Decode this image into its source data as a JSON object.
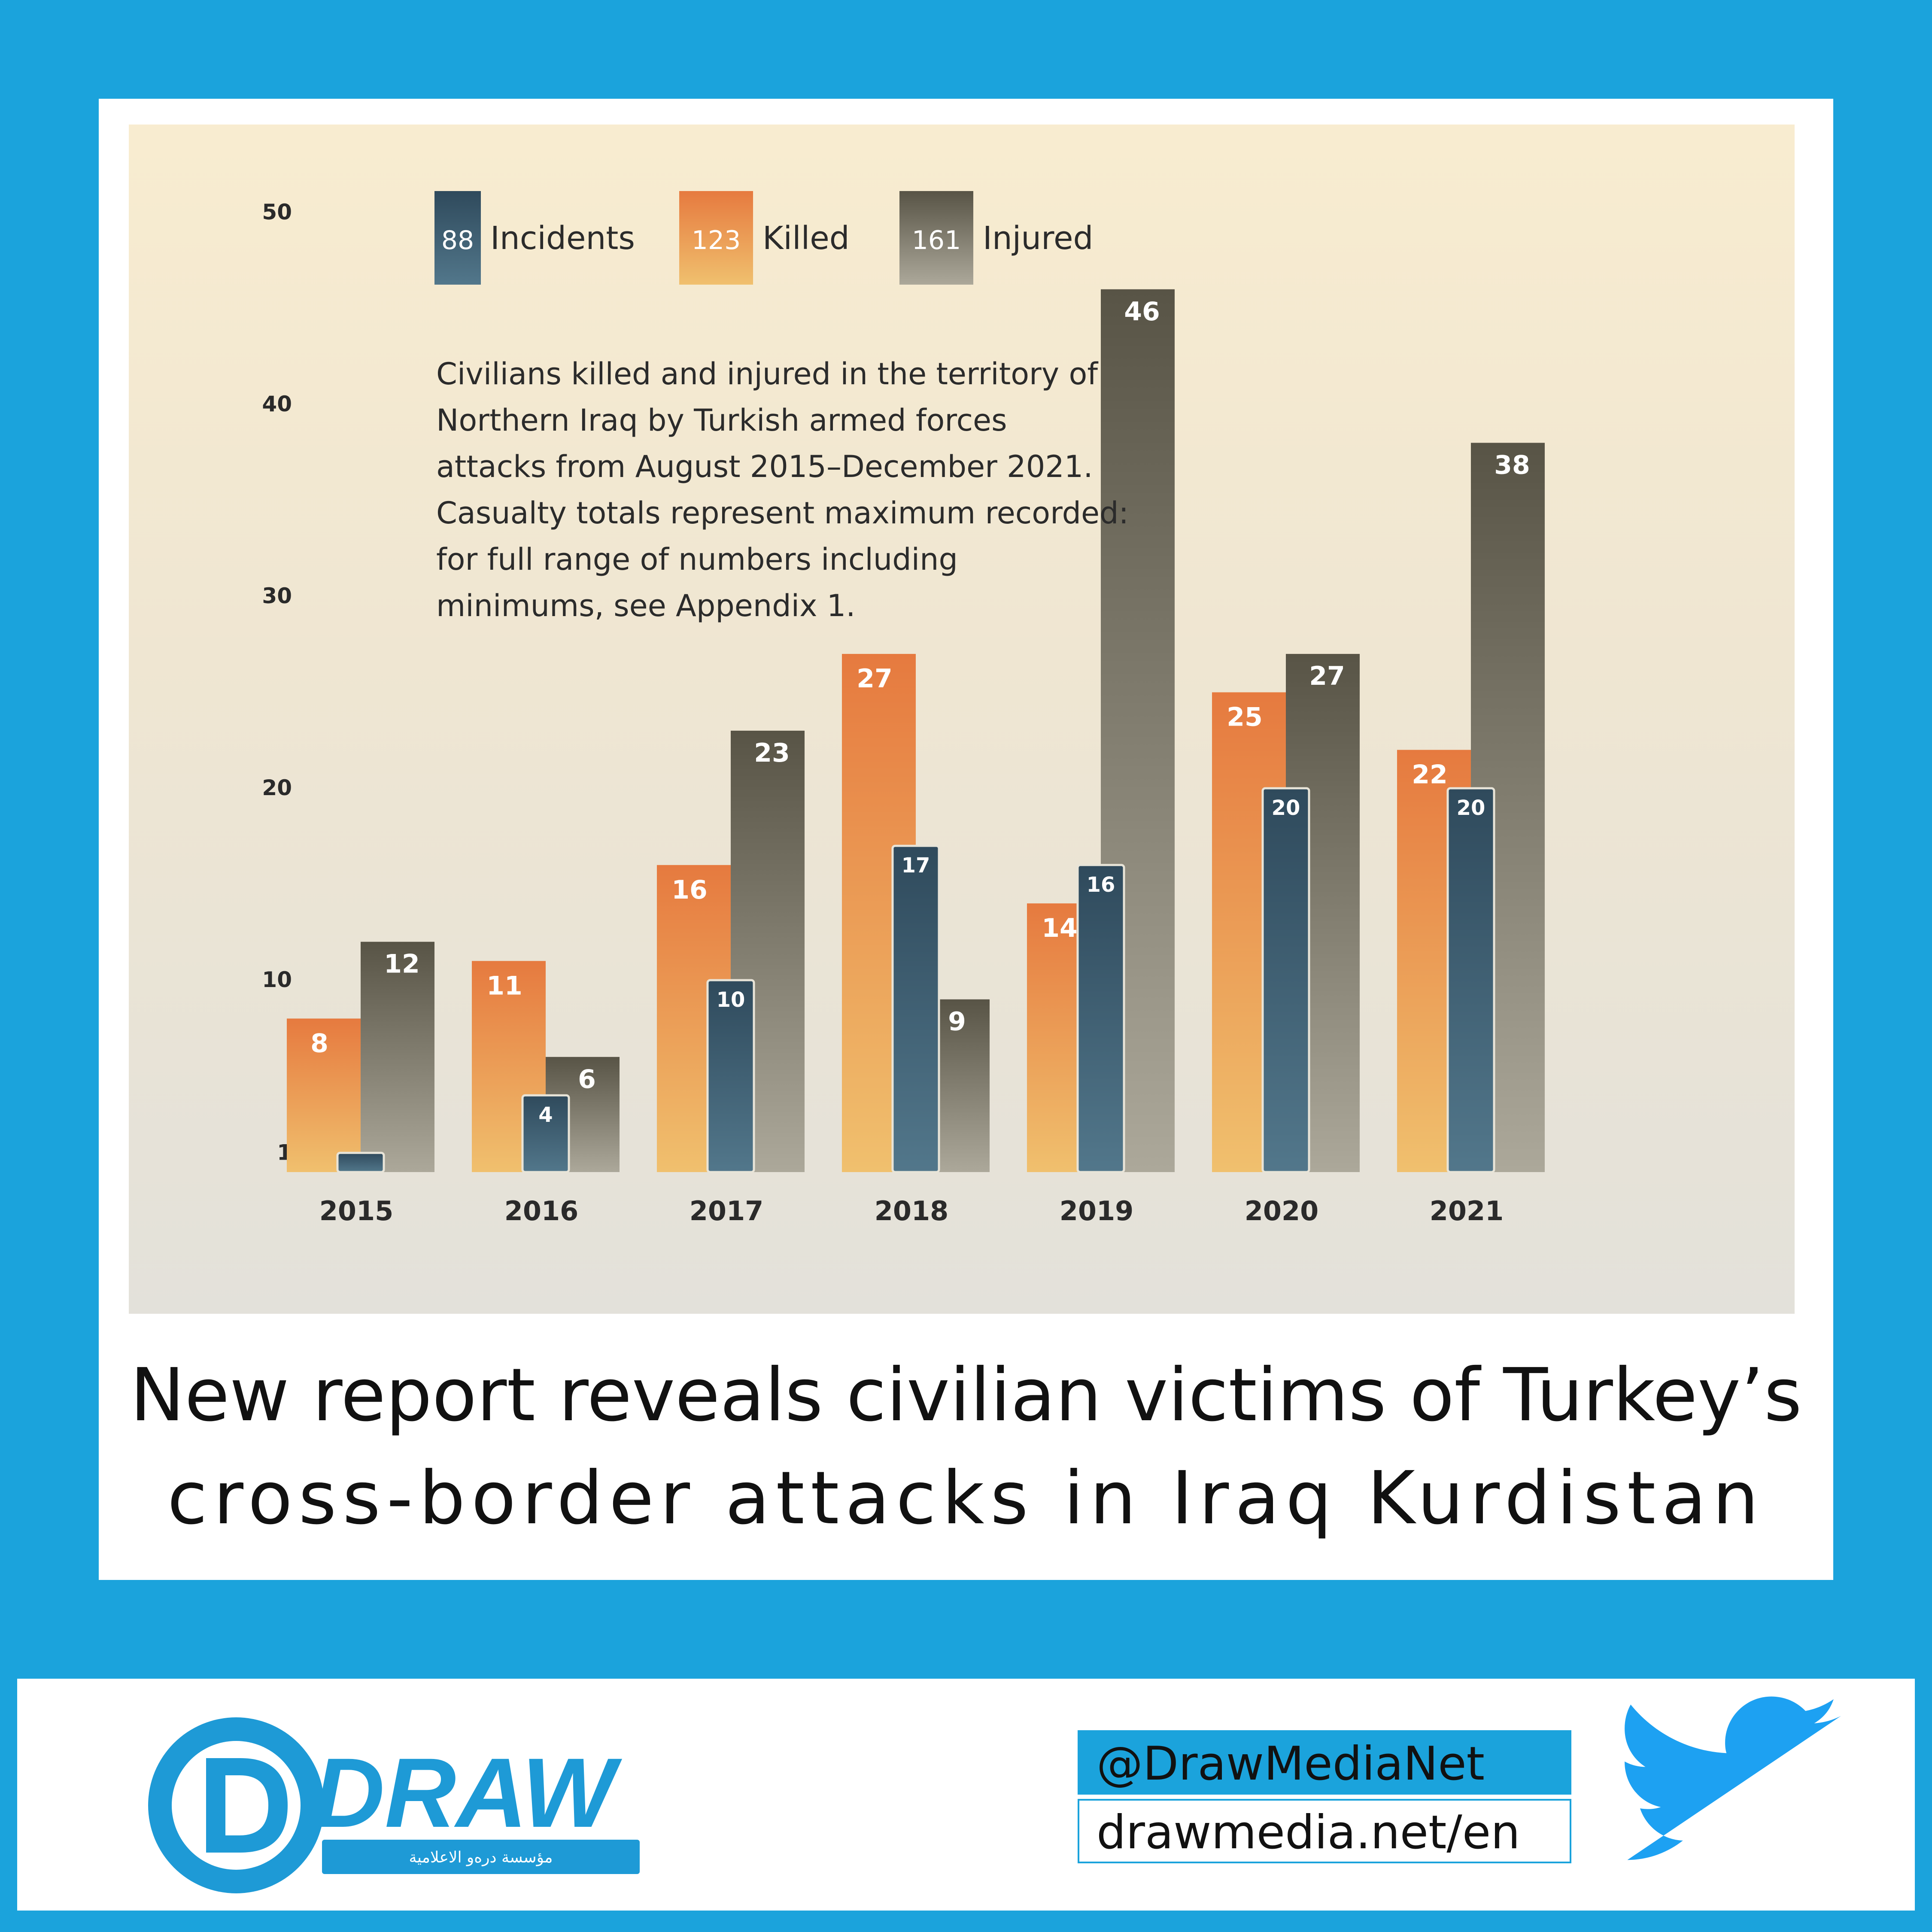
{
  "chart_data": {
    "type": "bar",
    "categories": [
      "2015",
      "2016",
      "2017",
      "2018",
      "2019",
      "2020",
      "2021"
    ],
    "series": [
      {
        "name": "Killed",
        "values": [
          8,
          11,
          16,
          27,
          14,
          25,
          22
        ],
        "color": "#e98545"
      },
      {
        "name": "Incidents",
        "values": [
          1,
          4,
          10,
          17,
          16,
          20,
          20
        ],
        "color": "#3c6178"
      },
      {
        "name": "Injured",
        "values": [
          12,
          6,
          23,
          9,
          46,
          27,
          38
        ],
        "color": "#5b584a"
      }
    ],
    "data_labels": {
      "Killed": [
        "8",
        "11",
        "16",
        "27",
        "14",
        "25",
        "22"
      ],
      "Incidents": [
        "",
        "4",
        "10",
        "17",
        "16",
        "20",
        "20"
      ],
      "Injured": [
        "12",
        "6",
        "23",
        "9",
        "46",
        "27",
        "38"
      ]
    },
    "ytick_values": [
      1,
      10,
      20,
      30,
      40,
      50
    ],
    "yticks": [
      "1",
      "10",
      "20",
      "30",
      "40",
      "50"
    ],
    "ylim": [
      0,
      50
    ],
    "legend": [
      {
        "name": "Incidents",
        "total": "88",
        "color": "#3c6178"
      },
      {
        "name": "Killed",
        "total": "123",
        "color": "#e98545"
      },
      {
        "name": "Injured",
        "total": "161",
        "color": "#5b584a"
      }
    ],
    "legend_position": "top",
    "annotation": [
      "Civilians killed and injured in the territory of",
      "Northern Iraq by Turkish armed forces",
      "attacks from August 2015–December 2021.",
      "Casualty totals represent maximum recorded:",
      "for full range of numbers including",
      "minimums, see Appendix 1."
    ],
    "grid": false
  },
  "headline": {
    "line1": "New report reveals civilian victims of Turkey’s",
    "line2": "cross-border attacks in Iraq Kurdistan"
  },
  "footer": {
    "logo_text": "DRAW",
    "logo_arabic": "مؤسسة دره‌و الاعلامية",
    "twitter_handle": "@DrawMediaNet",
    "website": "drawmedia.net/en"
  },
  "colors": {
    "background": "#1ba3dc",
    "brand_blue": "#1e9ad6",
    "twitter_blue": "#1da1f2"
  }
}
